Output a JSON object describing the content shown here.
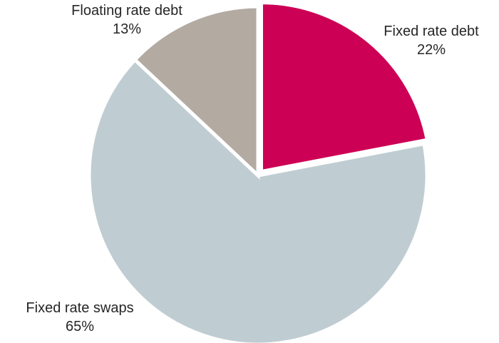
{
  "chart_data": {
    "type": "pie",
    "title": "",
    "slices": [
      {
        "label": "Fixed rate debt",
        "value": 22,
        "value_label": "22%",
        "color": "#cc0055"
      },
      {
        "label": "Fixed rate swaps",
        "value": 65,
        "value_label": "65%",
        "color": "#bfcdd2"
      },
      {
        "label": "Floating rate debt",
        "value": 13,
        "value_label": "13%",
        "color": "#b3aaa2"
      }
    ],
    "start_angle_deg": 0,
    "direction": "clockwise",
    "exploded_slice": "Fixed rate debt",
    "slice_border_color": "#ffffff",
    "legend": "none"
  }
}
